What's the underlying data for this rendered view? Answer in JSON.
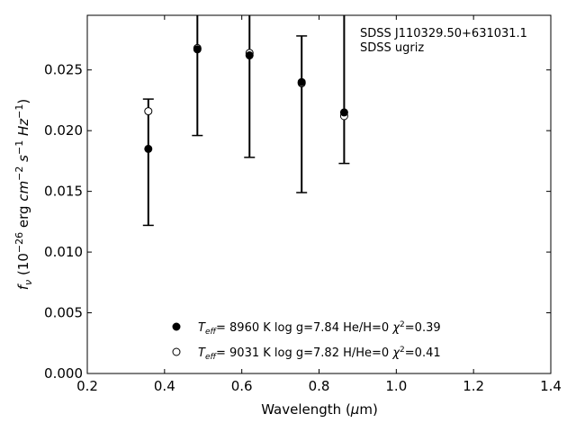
{
  "chart_data": {
    "type": "scatter",
    "xlabel": "Wavelength (μm)",
    "ylabel": "fν (10⁻²⁶ erg cm⁻² s⁻¹ Hz⁻¹)",
    "xlim": [
      0.2,
      1.4
    ],
    "ylim": [
      0.0,
      0.0295
    ],
    "xticks": [
      "0.2",
      "0.4",
      "0.6",
      "0.8",
      "1.0",
      "1.2",
      "1.4"
    ],
    "yticks": [
      "0.000",
      "0.005",
      "0.010",
      "0.015",
      "0.020",
      "0.025"
    ],
    "annotation": [
      "SDSS J110329.50+631031.1",
      "SDSS ugriz"
    ],
    "observed": {
      "x": [
        0.358,
        0.485,
        0.62,
        0.755,
        0.865
      ],
      "y": [
        0.0185,
        0.0267,
        0.0262,
        0.024,
        0.0215
      ],
      "yerr_low": [
        0.0122,
        0.0196,
        0.0178,
        0.0149,
        0.0173
      ],
      "yerr_high": [
        0.0226,
        0.03,
        0.03,
        0.0278,
        0.03
      ]
    },
    "series": [
      {
        "name": "Teff= 8960 K log g=7.84 He/H=0 χ²=0.39",
        "marker": "filled-circle",
        "x": [
          0.358,
          0.485,
          0.62,
          0.755,
          0.865
        ],
        "values": [
          0.0185,
          0.0267,
          0.0262,
          0.024,
          0.0215
        ]
      },
      {
        "name": "Teff= 9031 K log g=7.82 H/He=0 χ²=0.41",
        "marker": "open-circle",
        "x": [
          0.358,
          0.485,
          0.62,
          0.755,
          0.865
        ],
        "values": [
          0.0216,
          0.0268,
          0.0264,
          0.0239,
          0.0212
        ]
      }
    ],
    "legend": [
      {
        "teff": "8960 K",
        "logg": "log g=7.84",
        "comp": "He/H=0",
        "chi": "=0.39"
      },
      {
        "teff": "9031 K",
        "logg": "log g=7.82",
        "comp": "H/He=0",
        "chi": "=0.41"
      }
    ],
    "legend_placement": "bottom-center",
    "grid": false,
    "colors": {
      "marker": "#000000",
      "errorbar": "#000000",
      "axes": "#000000"
    }
  }
}
